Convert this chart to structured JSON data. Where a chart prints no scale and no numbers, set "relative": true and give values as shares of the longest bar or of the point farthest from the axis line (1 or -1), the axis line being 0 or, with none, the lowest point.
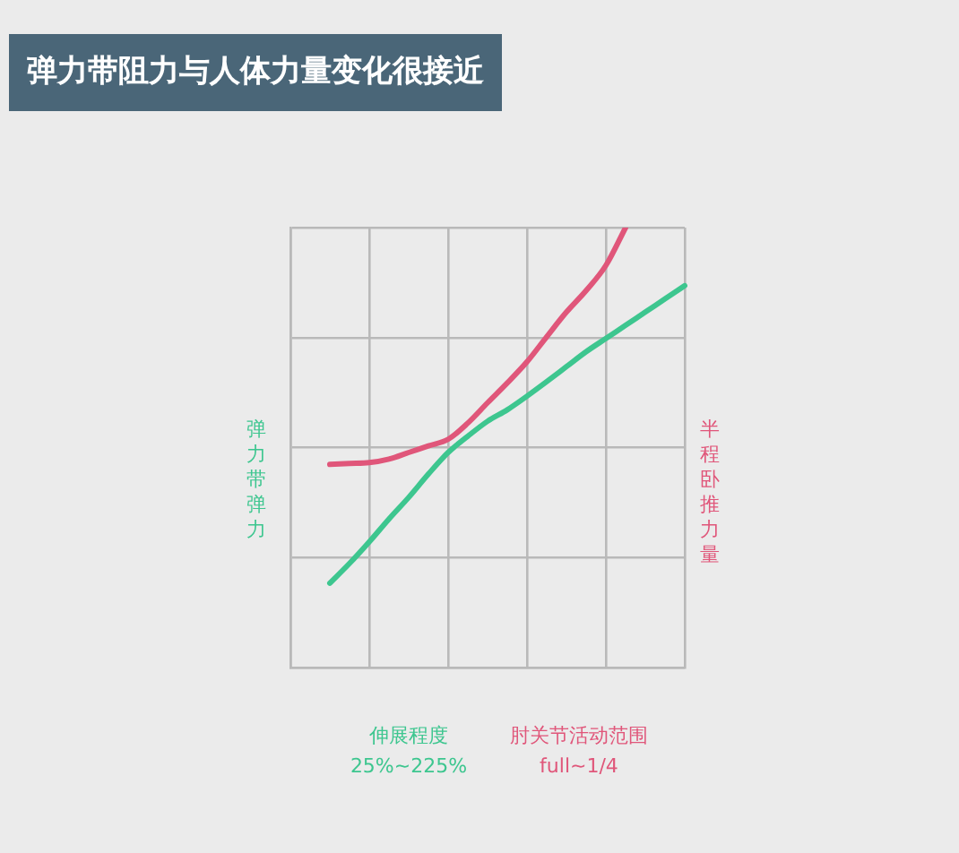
{
  "chart_data": {
    "type": "line",
    "title": "弹力带阻力与人体力量变化很接近",
    "ylabel": "弹力带弹力",
    "y2label": "半程卧推力量",
    "annotations": [
      "伸展程度\n25%~225%",
      "肘关节活动范围\nfull~1/4"
    ],
    "relative": true,
    "grid": true,
    "legend": false,
    "marker": "none",
    "line_style": "solid",
    "categories": [
      null,
      null,
      null,
      null,
      null,
      null,
      null,
      null,
      null,
      null,
      null,
      null,
      null,
      null,
      null,
      null,
      null,
      null,
      null,
      null,
      null
    ],
    "series": [
      {
        "color": "#3dc68f",
        "values": [
          null,
          null,
          0.192,
          0.237,
          0.286,
          0.338,
          0.387,
          0.44,
          0.489,
          0.526,
          0.56,
          0.586,
          0.617,
          0.65,
          0.684,
          0.718,
          0.748,
          0.778,
          0.808,
          0.838,
          0.868
        ]
      },
      {
        "color": "#e0567a",
        "values": [
          null,
          null,
          0.462,
          0.464,
          0.466,
          0.474,
          0.489,
          0.504,
          0.519,
          0.556,
          0.602,
          0.647,
          0.695,
          0.752,
          0.808,
          0.857,
          0.914,
          1.0,
          null,
          null,
          null
        ]
      }
    ]
  }
}
